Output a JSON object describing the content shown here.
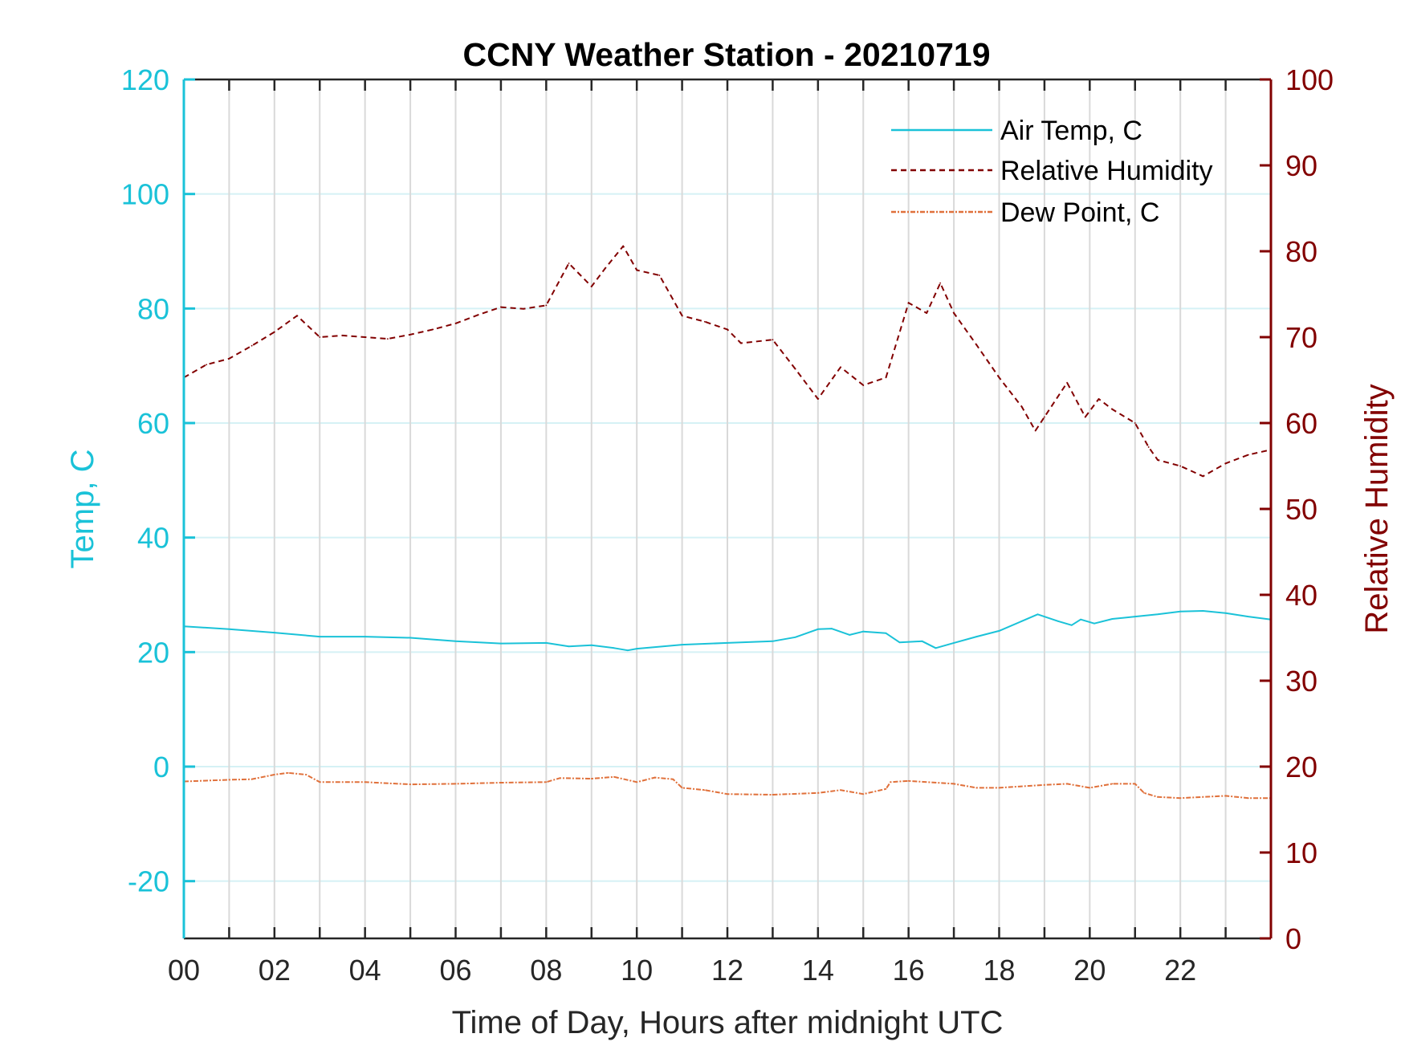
{
  "chart_data": {
    "type": "line",
    "title": "CCNY Weather Station - 20210719",
    "xlabel": "Time of Day, Hours after midnight UTC",
    "ylabel_left": "Temp, C",
    "ylabel_right": "Relative Humidity",
    "xlim": [
      0,
      24
    ],
    "ylim_left": [
      -30,
      120
    ],
    "ylim_right": [
      0,
      100
    ],
    "x_ticks": [
      0,
      2,
      4,
      6,
      8,
      10,
      12,
      14,
      16,
      18,
      20,
      22
    ],
    "x_tick_labels": [
      "00",
      "02",
      "04",
      "06",
      "08",
      "10",
      "12",
      "14",
      "16",
      "18",
      "20",
      "22"
    ],
    "x_minor_grid_hours": [
      1,
      2,
      3,
      4,
      5,
      6,
      7,
      8,
      9,
      10,
      11,
      12,
      13,
      14,
      15,
      16,
      17,
      18,
      19,
      20,
      21,
      22,
      23
    ],
    "y_left_ticks": [
      -20,
      0,
      20,
      40,
      60,
      80,
      100,
      120
    ],
    "y_left_tick_labels": [
      "-20",
      "0",
      "20",
      "40",
      "60",
      "80",
      "100",
      "120"
    ],
    "y_right_ticks": [
      0,
      10,
      20,
      30,
      40,
      50,
      60,
      70,
      80,
      90,
      100
    ],
    "y_right_tick_labels": [
      "0",
      "10",
      "20",
      "30",
      "40",
      "50",
      "60",
      "70",
      "80",
      "90",
      "100"
    ],
    "grid": true,
    "legend_position": "top-right",
    "colors": {
      "left_axis": "#1ac2d8",
      "right_axis": "#820000",
      "x_axis": "#262626",
      "grid_vertical": "#d9d9d9",
      "grid_horizontal": "#d5f1f5"
    },
    "series": [
      {
        "name": "Air Temp, C",
        "axis": "left",
        "color": "#1ac2d8",
        "style": "solid",
        "x": [
          0,
          1,
          2,
          3,
          4,
          5,
          6,
          7,
          8,
          8.5,
          9,
          9.5,
          9.8,
          10,
          11,
          12,
          13,
          13.5,
          14,
          14.3,
          14.7,
          15,
          15.5,
          15.8,
          16.3,
          16.6,
          17,
          17.5,
          18,
          18.5,
          18.85,
          19.3,
          19.6,
          19.8,
          20.1,
          20.5,
          21,
          21.5,
          22,
          22.5,
          23,
          23.5,
          24
        ],
        "y": [
          24.5,
          24.0,
          23.4,
          22.7,
          22.7,
          22.5,
          21.9,
          21.5,
          21.6,
          21.0,
          21.2,
          20.7,
          20.3,
          20.6,
          21.3,
          21.6,
          21.9,
          22.6,
          24.0,
          24.1,
          23.0,
          23.6,
          23.3,
          21.7,
          21.9,
          20.7,
          21.6,
          22.7,
          23.7,
          25.4,
          26.6,
          25.4,
          24.7,
          25.7,
          25.0,
          25.8,
          26.2,
          26.6,
          27.1,
          27.2,
          26.8,
          26.2,
          25.7
        ]
      },
      {
        "name": "Relative Humidity",
        "axis": "right",
        "color": "#820000",
        "style": "dashed",
        "x": [
          0,
          0.5,
          1,
          1.5,
          2,
          2.5,
          3,
          3.5,
          4,
          4.5,
          5,
          5.5,
          6,
          6.5,
          7,
          7.5,
          8,
          8.5,
          9,
          9.3,
          9.7,
          10,
          10.5,
          11,
          11.5,
          12,
          12.3,
          13,
          13.5,
          14,
          14.5,
          15,
          15.5,
          16,
          16.4,
          16.7,
          17,
          17.5,
          18,
          18.5,
          18.8,
          19,
          19.5,
          19.9,
          20.2,
          20.5,
          21,
          21.3,
          21.5,
          22,
          22.5,
          23,
          23.5,
          24
        ],
        "y": [
          65.3,
          66.8,
          67.5,
          69.0,
          70.6,
          72.5,
          70.0,
          70.2,
          70.0,
          69.8,
          70.3,
          70.9,
          71.6,
          72.6,
          73.5,
          73.3,
          73.7,
          78.6,
          75.9,
          78.0,
          80.6,
          77.8,
          77.2,
          72.5,
          71.8,
          70.9,
          69.3,
          69.7,
          66.3,
          62.8,
          66.5,
          64.4,
          65.3,
          74.0,
          72.8,
          76.3,
          72.8,
          69.1,
          65.3,
          61.9,
          59.1,
          60.7,
          64.7,
          60.7,
          62.8,
          61.6,
          60.0,
          57.2,
          55.7,
          55.0,
          53.8,
          55.3,
          56.3,
          56.9
        ]
      },
      {
        "name": "Dew Point, C",
        "axis": "left",
        "color": "#e0703a",
        "style": "dashdot",
        "x": [
          0,
          1,
          1.5,
          2,
          2.3,
          2.7,
          3,
          4,
          5,
          6,
          7,
          8,
          8.3,
          9,
          9.5,
          10,
          10.4,
          10.8,
          11,
          11.5,
          12,
          13,
          14,
          14.5,
          15,
          15.5,
          15.6,
          16,
          17,
          17.5,
          18,
          19,
          19.5,
          20,
          20.5,
          21,
          21.2,
          21.5,
          22,
          22.5,
          23,
          23.5,
          24
        ],
        "y": [
          -2.6,
          -2.3,
          -2.2,
          -1.4,
          -1.1,
          -1.4,
          -2.7,
          -2.7,
          -3.1,
          -3.0,
          -2.8,
          -2.7,
          -2.0,
          -2.1,
          -1.8,
          -2.7,
          -1.9,
          -2.2,
          -3.7,
          -4.1,
          -4.8,
          -4.9,
          -4.6,
          -4.1,
          -4.8,
          -3.9,
          -2.7,
          -2.5,
          -3.0,
          -3.7,
          -3.7,
          -3.2,
          -3.0,
          -3.7,
          -3.0,
          -3.0,
          -4.6,
          -5.3,
          -5.5,
          -5.3,
          -5.1,
          -5.5,
          -5.5
        ]
      }
    ]
  }
}
